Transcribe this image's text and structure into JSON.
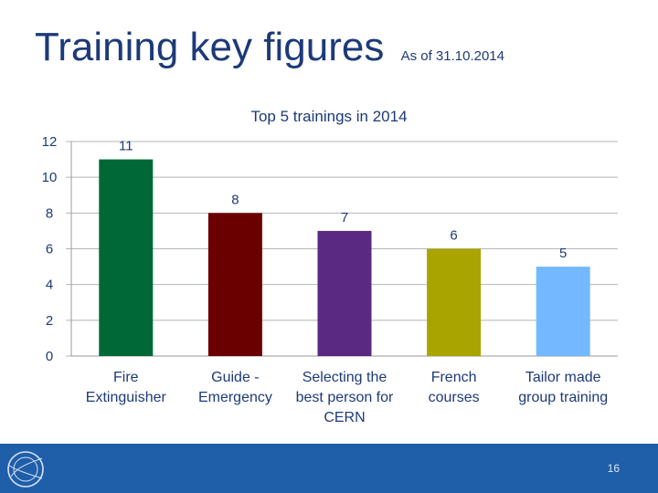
{
  "slide": {
    "title": "Training key figures",
    "subtitle": "As of 31.10.2014",
    "page_number": "16"
  },
  "footer": {
    "logo_icon": "cern-logo-icon"
  },
  "chart_data": {
    "type": "bar",
    "title": "Top 5 trainings in 2014",
    "categories": [
      [
        "Fire",
        "Extinguisher"
      ],
      [
        "Guide -",
        "Emergency"
      ],
      [
        "Selecting the",
        "best person for",
        "CERN"
      ],
      [
        "French",
        "courses"
      ],
      [
        "Tailor made",
        "group training"
      ]
    ],
    "values": [
      11,
      8,
      7,
      6,
      5
    ],
    "colors": [
      "#006837",
      "#6b0000",
      "#5a2a82",
      "#a9a400",
      "#74b9ff"
    ],
    "ylim": [
      0,
      12
    ],
    "yticks": [
      0,
      2,
      4,
      6,
      8,
      10,
      12
    ],
    "xlabel": "",
    "ylabel": "",
    "grid": true,
    "legend": "none",
    "data_labels": true
  }
}
